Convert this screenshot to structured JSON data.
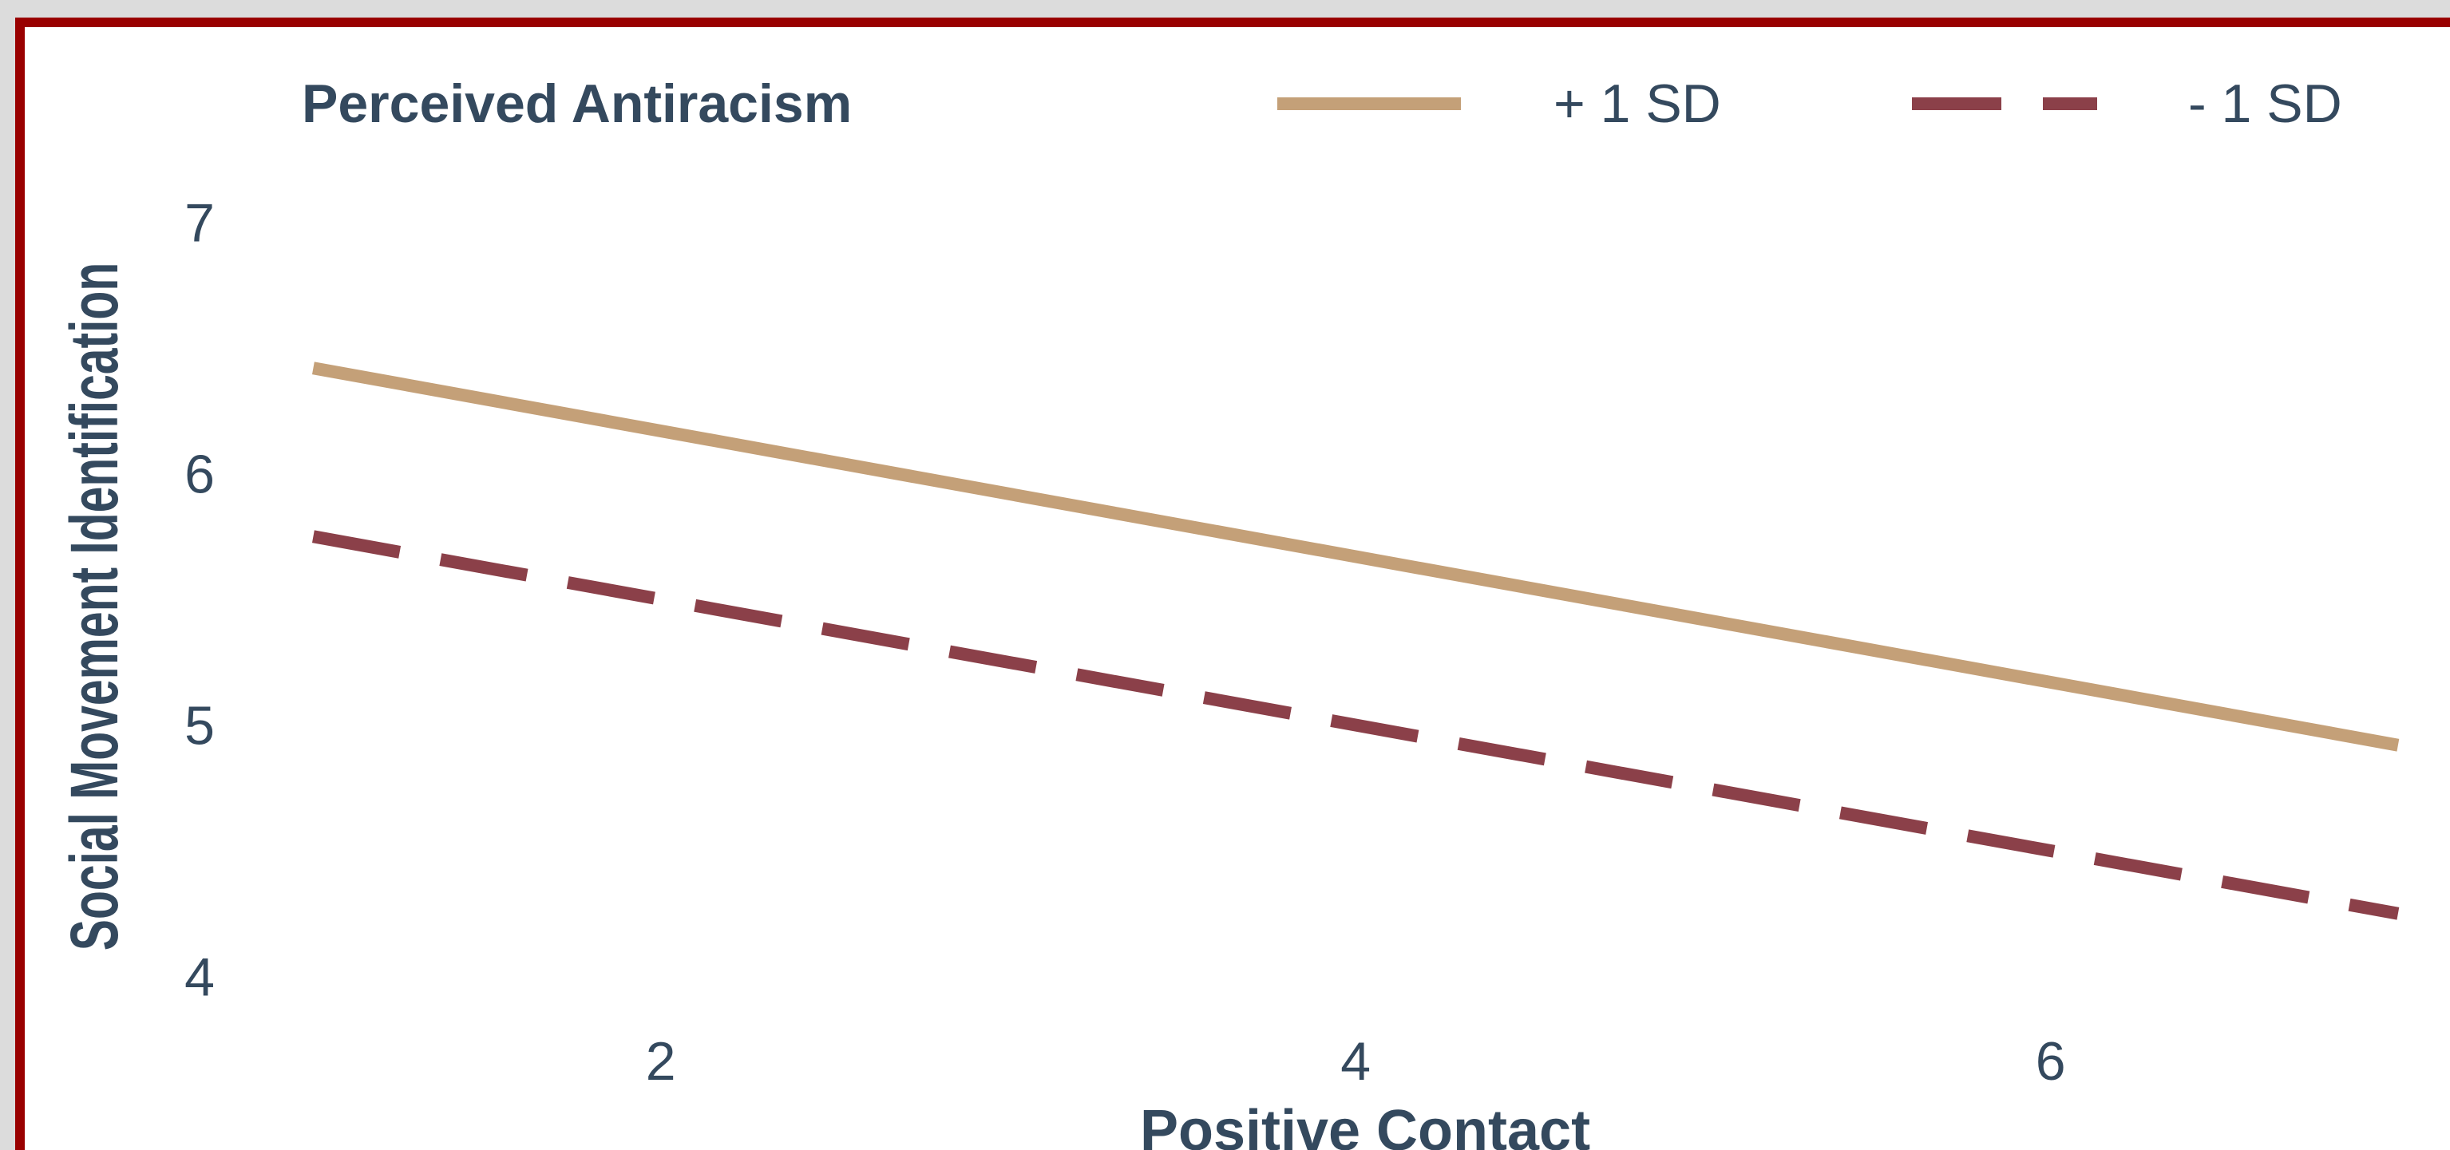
{
  "chart_data": {
    "type": "line",
    "xlabel": "Positive Contact",
    "ylabel": "Social Movement Identification",
    "legend": {
      "title": "Perceived Antiracism",
      "placement": "top"
    },
    "x": [
      1,
      7
    ],
    "series": [
      {
        "name": "+ 1 SD",
        "values": [
          6.42,
          4.92
        ],
        "color": "#c4a078",
        "dash": "solid"
      },
      {
        "name": "- 1 SD",
        "values": [
          5.75,
          4.25
        ],
        "color": "#8b4049",
        "dash": "dashed"
      }
    ],
    "xticks": [
      2,
      4,
      6
    ],
    "yticks": [
      4,
      5,
      6,
      7
    ],
    "xlim": [
      0.96,
      7.06
    ],
    "ylim": [
      3.9,
      7.1
    ],
    "grid": false
  }
}
